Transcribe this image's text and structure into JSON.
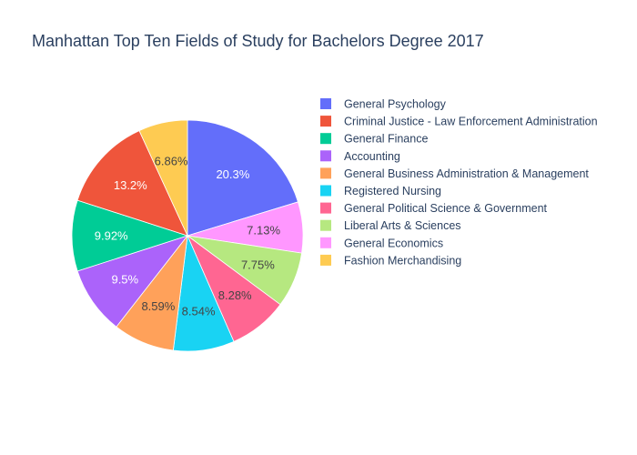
{
  "chart_data": {
    "type": "pie",
    "title": "Manhattan Top Ten Fields of Study for Bachelors Degree 2017",
    "legend_position": "right",
    "slices": [
      {
        "label": "General Psychology",
        "value": 20.3,
        "display": "20.3%",
        "color": "#636efa"
      },
      {
        "label": "Criminal Justice - Law Enforcement Administration",
        "value": 13.2,
        "display": "13.2%",
        "color": "#ef553b"
      },
      {
        "label": "General Finance",
        "value": 9.92,
        "display": "9.92%",
        "color": "#00cc96"
      },
      {
        "label": "Accounting",
        "value": 9.5,
        "display": "9.5%",
        "color": "#ab63fa"
      },
      {
        "label": "General Business Administration & Management",
        "value": 8.59,
        "display": "8.59%",
        "color": "#ffa15a"
      },
      {
        "label": "Registered Nursing",
        "value": 8.54,
        "display": "8.54%",
        "color": "#19d3f3"
      },
      {
        "label": "General Political Science & Government",
        "value": 8.28,
        "display": "8.28%",
        "color": "#ff6692"
      },
      {
        "label": "Liberal Arts & Sciences",
        "value": 7.75,
        "display": "7.75%",
        "color": "#b6e880"
      },
      {
        "label": "General Economics",
        "value": 7.13,
        "display": "7.13%",
        "color": "#ff97ff"
      },
      {
        "label": "Fashion Merchandising",
        "value": 6.86,
        "display": "6.86%",
        "color": "#fecb52"
      }
    ],
    "pie_order": [
      0,
      8,
      7,
      6,
      5,
      4,
      3,
      2,
      1,
      9
    ]
  }
}
